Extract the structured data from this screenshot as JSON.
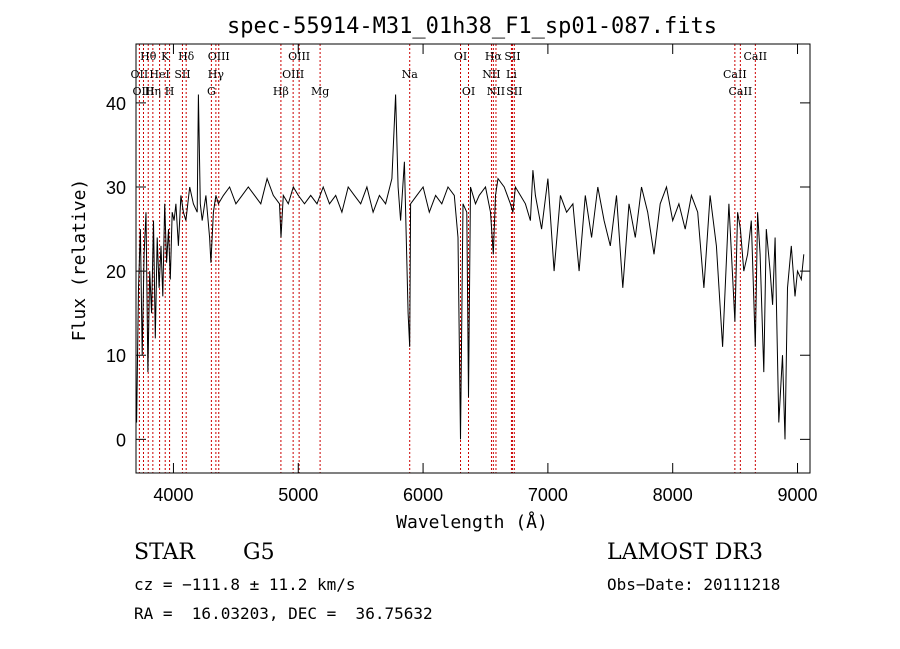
{
  "chart_data": {
    "type": "line",
    "title": "spec-55914-M31_01h38_F1_sp01-087.fits",
    "xlabel": "Wavelength (Å)",
    "ylabel": "Flux (relative)",
    "xlim": [
      3700,
      9100
    ],
    "ylim": [
      -4,
      47
    ],
    "x_ticks": [
      4000,
      5000,
      6000,
      7000,
      8000,
      9000
    ],
    "y_ticks": [
      0,
      10,
      20,
      30,
      40
    ],
    "line_color": "#000000",
    "marker_color": "#cc0000",
    "series": [
      {
        "x": [
          3705,
          3720,
          3735,
          3750,
          3765,
          3780,
          3795,
          3810,
          3825,
          3840,
          3855,
          3870,
          3885,
          3900,
          3915,
          3930,
          3945,
          3960,
          3975,
          3990,
          4005,
          4020,
          4040,
          4060,
          4080,
          4100,
          4130,
          4160,
          4190,
          4200,
          4215,
          4230,
          4260,
          4290,
          4300,
          4320,
          4340,
          4360,
          4400,
          4450,
          4500,
          4550,
          4600,
          4650,
          4700,
          4750,
          4800,
          4850,
          4862,
          4880,
          4920,
          4960,
          5000,
          5050,
          5100,
          5150,
          5200,
          5250,
          5300,
          5350,
          5400,
          5450,
          5500,
          5550,
          5600,
          5650,
          5700,
          5750,
          5780,
          5800,
          5820,
          5850,
          5880,
          5893,
          5900,
          5950,
          6000,
          6050,
          6100,
          6150,
          6200,
          6250,
          6280,
          6300,
          6320,
          6350,
          6364,
          6380,
          6420,
          6450,
          6500,
          6540,
          6563,
          6580,
          6600,
          6650,
          6700,
          6720,
          6740,
          6780,
          6820,
          6860,
          6880,
          6900,
          6950,
          7000,
          7050,
          7100,
          7150,
          7200,
          7250,
          7300,
          7350,
          7400,
          7450,
          7500,
          7550,
          7600,
          7650,
          7700,
          7750,
          7800,
          7850,
          7900,
          7950,
          8000,
          8050,
          8100,
          8150,
          8200,
          8250,
          8300,
          8350,
          8400,
          8450,
          8498,
          8520,
          8542,
          8570,
          8600,
          8630,
          8662,
          8680,
          8700,
          8730,
          8750,
          8780,
          8800,
          8820,
          8850,
          8880,
          8900,
          8920,
          8950,
          8980,
          9000,
          9030,
          9050
        ],
        "values": [
          2,
          18,
          25,
          10,
          22,
          27,
          8,
          20,
          15,
          26,
          12,
          24,
          18,
          23,
          17,
          28,
          21,
          25,
          19,
          27,
          26,
          28,
          23,
          29,
          27,
          26,
          30,
          28,
          27,
          41,
          28,
          26,
          29,
          24,
          21,
          27,
          29,
          28,
          29,
          30,
          28,
          29,
          30,
          29,
          28,
          31,
          29,
          28,
          24,
          29,
          28,
          30,
          29,
          28,
          29,
          28,
          30,
          28,
          29,
          27,
          30,
          29,
          28,
          30,
          27,
          29,
          28,
          31,
          41,
          30,
          26,
          33,
          15,
          11,
          28,
          29,
          30,
          27,
          29,
          28,
          30,
          29,
          24,
          0,
          28,
          27,
          5,
          30,
          28,
          29,
          30,
          27,
          22,
          29,
          31,
          30,
          28,
          27,
          30,
          29,
          28,
          26,
          32,
          29,
          25,
          31,
          20,
          29,
          27,
          28,
          20,
          29,
          24,
          30,
          26,
          23,
          29,
          18,
          28,
          24,
          30,
          27,
          22,
          28,
          30,
          26,
          28,
          25,
          29,
          27,
          18,
          29,
          23,
          11,
          28,
          14,
          27,
          25,
          20,
          22,
          26,
          11,
          27,
          22,
          8,
          25,
          20,
          16,
          24,
          2,
          10,
          0,
          18,
          23,
          17,
          20,
          19,
          22
        ]
      }
    ],
    "annotations": [
      {
        "label": "Hθ",
        "x": 3798,
        "row": 1
      },
      {
        "label": "OII",
        "x": 3727,
        "row": 2
      },
      {
        "label": "OIII",
        "x": 3760,
        "row": 3
      },
      {
        "label": "K",
        "x": 3934,
        "row": 1
      },
      {
        "label": "HeI",
        "x": 3889,
        "row": 2
      },
      {
        "label": "Hη",
        "x": 3835,
        "row": 3
      },
      {
        "label": "SII",
        "x": 4072,
        "row": 2
      },
      {
        "label": "H",
        "x": 3969,
        "row": 3
      },
      {
        "label": "Hδ",
        "x": 4102,
        "row": 1
      },
      {
        "label": "OIII",
        "x": 4363,
        "row": 1
      },
      {
        "label": "Hγ",
        "x": 4340,
        "row": 2
      },
      {
        "label": "G",
        "x": 4304,
        "row": 3
      },
      {
        "label": "OIII",
        "x": 5007,
        "row": 1
      },
      {
        "label": "OIII",
        "x": 4959,
        "row": 2
      },
      {
        "label": "Hβ",
        "x": 4861,
        "row": 3
      },
      {
        "label": "Mg",
        "x": 5175,
        "row": 3
      },
      {
        "label": "Na",
        "x": 5893,
        "row": 2
      },
      {
        "label": "OI",
        "x": 6300,
        "row": 1
      },
      {
        "label": "OI",
        "x": 6364,
        "row": 3
      },
      {
        "label": "Hα",
        "x": 6563,
        "row": 1
      },
      {
        "label": "SII",
        "x": 6716,
        "row": 1
      },
      {
        "label": "NII",
        "x": 6548,
        "row": 2
      },
      {
        "label": "Li",
        "x": 6708,
        "row": 2
      },
      {
        "label": "NII",
        "x": 6584,
        "row": 3
      },
      {
        "label": "SII",
        "x": 6731,
        "row": 3
      },
      {
        "label": "CaII",
        "x": 8662,
        "row": 1
      },
      {
        "label": "CaII",
        "x": 8498,
        "row": 2
      },
      {
        "label": "CaII",
        "x": 8542,
        "row": 3
      }
    ]
  },
  "info": {
    "class": "STAR",
    "subclass": "G5",
    "survey": "LAMOST DR3",
    "cz": "cz = −111.8 ± 11.2 km/s",
    "obs_date": "Obs−Date: 20111218",
    "radec": "RA =  16.03203, DEC =  36.75632"
  }
}
